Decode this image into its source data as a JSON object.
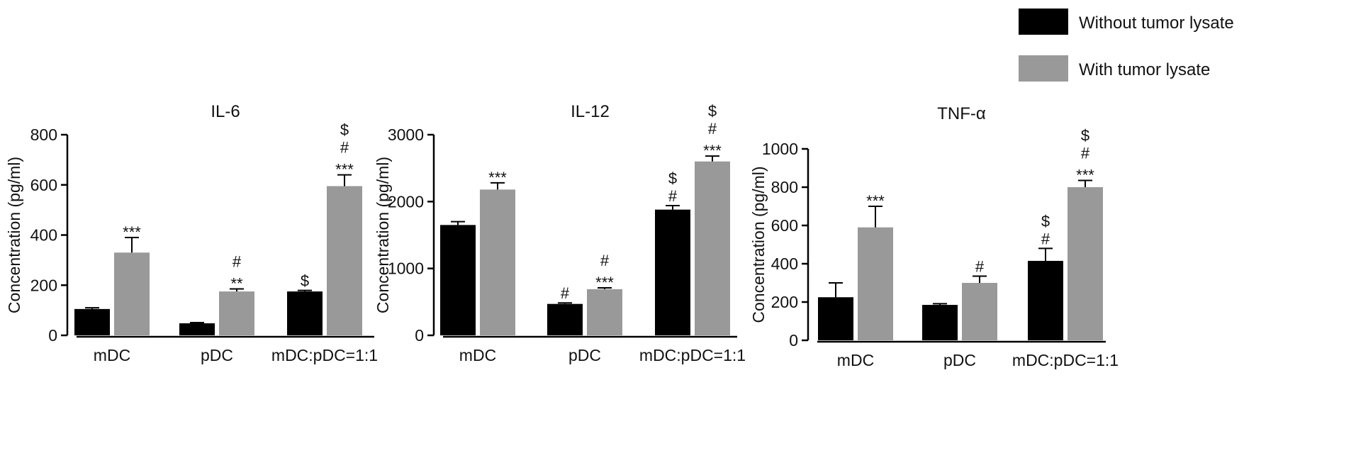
{
  "legend": [
    {
      "label": "Without tumor lysate",
      "color": "#000000"
    },
    {
      "label": "With tumor lysate",
      "color": "#999999"
    }
  ],
  "chart_data": [
    {
      "type": "bar",
      "title": "IL-6",
      "ylabel": "Concentration (pg/ml)",
      "categories": [
        "mDC",
        "pDC",
        "mDC:pDC=1:1"
      ],
      "yticks": [
        0,
        200,
        400,
        600,
        800
      ],
      "ylim": [
        0,
        800
      ],
      "series": [
        {
          "name": "Without tumor lysate",
          "color": "#000000",
          "values": [
            105,
            48,
            175
          ],
          "errors": [
            5,
            3,
            4
          ],
          "annotations": [
            [],
            [],
            [
              "$"
            ]
          ]
        },
        {
          "name": "With tumor lysate",
          "color": "#999999",
          "values": [
            330,
            175,
            595
          ],
          "errors": [
            60,
            10,
            45
          ],
          "annotations": [
            [
              "***"
            ],
            [
              "**",
              "#"
            ],
            [
              "***",
              "#",
              "$"
            ]
          ]
        }
      ]
    },
    {
      "type": "bar",
      "title": "IL-12",
      "ylabel": "Concentration (pg/ml)",
      "categories": [
        "mDC",
        "pDC",
        "mDC:pDC=1:1"
      ],
      "yticks": [
        0,
        1000,
        2000,
        3000
      ],
      "ylim": [
        0,
        3000
      ],
      "series": [
        {
          "name": "Without tumor lysate",
          "color": "#000000",
          "values": [
            1650,
            470,
            1880
          ],
          "errors": [
            50,
            15,
            60
          ],
          "annotations": [
            [],
            [
              "#"
            ],
            [
              "#",
              "$"
            ]
          ]
        },
        {
          "name": "With tumor lysate",
          "color": "#999999",
          "values": [
            2180,
            690,
            2600
          ],
          "errors": [
            100,
            20,
            80
          ],
          "annotations": [
            [
              "***"
            ],
            [
              "***",
              "#"
            ],
            [
              "***",
              "#",
              "$"
            ]
          ]
        }
      ]
    },
    {
      "type": "bar",
      "title": "TNF-α",
      "ylabel": "Concentration (pg/ml)",
      "categories": [
        "mDC",
        "pDC",
        "mDC:pDC=1:1"
      ],
      "yticks": [
        0,
        200,
        400,
        600,
        800,
        1000
      ],
      "ylim": [
        0,
        1000
      ],
      "series": [
        {
          "name": "Without tumor lysate",
          "color": "#000000",
          "values": [
            225,
            185,
            415
          ],
          "errors": [
            75,
            6,
            65
          ],
          "annotations": [
            [],
            [],
            [
              "#",
              "$"
            ]
          ]
        },
        {
          "name": "With tumor lysate",
          "color": "#999999",
          "values": [
            590,
            300,
            800
          ],
          "errors": [
            110,
            35,
            35
          ],
          "annotations": [
            [
              "***"
            ],
            [
              "#"
            ],
            [
              "***",
              "#",
              "$"
            ]
          ]
        }
      ]
    }
  ]
}
